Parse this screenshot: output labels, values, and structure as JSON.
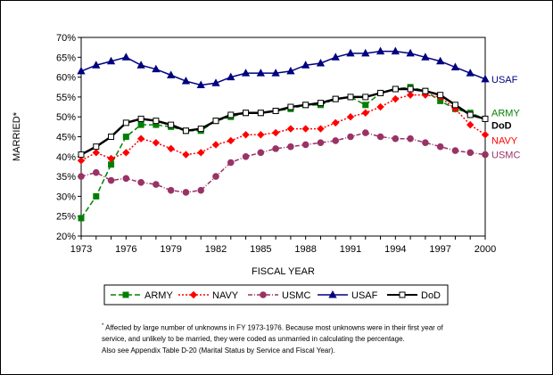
{
  "chart_data": {
    "type": "line",
    "xlabel": "FISCAL YEAR",
    "ylabel": "MARRIED*",
    "x": [
      1973,
      1974,
      1975,
      1976,
      1977,
      1978,
      1979,
      1980,
      1981,
      1982,
      1983,
      1984,
      1985,
      1986,
      1987,
      1988,
      1989,
      1990,
      1991,
      1992,
      1993,
      1994,
      1995,
      1996,
      1997,
      1998,
      1999,
      2000
    ],
    "xticks": [
      1973,
      1976,
      1979,
      1982,
      1985,
      1988,
      1991,
      1994,
      1997,
      2000
    ],
    "xlim": [
      1973,
      2000
    ],
    "ylim": [
      20,
      70
    ],
    "yticks": [
      "20%",
      "25%",
      "30%",
      "35%",
      "40%",
      "45%",
      "50%",
      "55%",
      "60%",
      "65%",
      "70%"
    ],
    "grid": false,
    "series": [
      {
        "name": "ARMY",
        "color": "#008000",
        "dash": "6,3",
        "marker": "square",
        "values": [
          24.5,
          30,
          38,
          45,
          48,
          48,
          47.5,
          46.5,
          46.5,
          49,
          50,
          51,
          51,
          51.5,
          52,
          53,
          53,
          54.5,
          55,
          53,
          56,
          57,
          57.5,
          56.5,
          54,
          52,
          51,
          49.5
        ]
      },
      {
        "name": "NAVY",
        "color": "#ff0000",
        "dash": "2,2",
        "marker": "diamond",
        "values": [
          39,
          41,
          39.5,
          41,
          44.5,
          43.5,
          42,
          40.5,
          41,
          43,
          44,
          45.5,
          45.5,
          46,
          47,
          47,
          47,
          48.5,
          50,
          51,
          52.5,
          54.5,
          55.5,
          55.5,
          55,
          52,
          48,
          45.5
        ]
      },
      {
        "name": "USMC",
        "color": "#993366",
        "dash": "5,2,1,2",
        "marker": "circle",
        "values": [
          35,
          36,
          34,
          34.5,
          33.5,
          33,
          31.5,
          31,
          31.5,
          35,
          38.5,
          40,
          41,
          42,
          42.5,
          43,
          43.5,
          44,
          45,
          46,
          45,
          44.5,
          44.5,
          43.5,
          42.5,
          41.5,
          41,
          40.5
        ]
      },
      {
        "name": "USAF",
        "color": "#000080",
        "dash": "",
        "marker": "triangle",
        "values": [
          61.5,
          63,
          64,
          65,
          63,
          62,
          60.5,
          59,
          58,
          58.5,
          60,
          61,
          61,
          61,
          61.5,
          63,
          63.5,
          65,
          66,
          66,
          66.5,
          66.5,
          66,
          65,
          64,
          62.5,
          61,
          59.5
        ]
      },
      {
        "name": "DoD",
        "color": "#000000",
        "dash": "",
        "marker": "opensquare",
        "values": [
          40.5,
          42.5,
          45,
          48.5,
          49.5,
          49,
          48,
          46.5,
          47,
          49,
          50.5,
          51,
          51,
          51.5,
          52.5,
          53,
          53.5,
          54.5,
          55,
          55,
          56,
          57,
          57,
          56.5,
          55.5,
          53,
          50.5,
          49.5
        ]
      }
    ],
    "end_labels": [
      "USAF",
      "ARMY",
      "DoD",
      "NAVY",
      "USMC"
    ],
    "legend_position": "bottom"
  },
  "footnote": {
    "line1_star": "*",
    "line1": " Affected by large number of unknowns in FY 1973-1976. Because most unknowns were in their first year of",
    "line2": "service, and unlikely to be married, they were coded as unmarried in calculating the percentage.",
    "line3": "Also see Appendix Table D-20 (Marital Status by Service and Fiscal Year)."
  }
}
